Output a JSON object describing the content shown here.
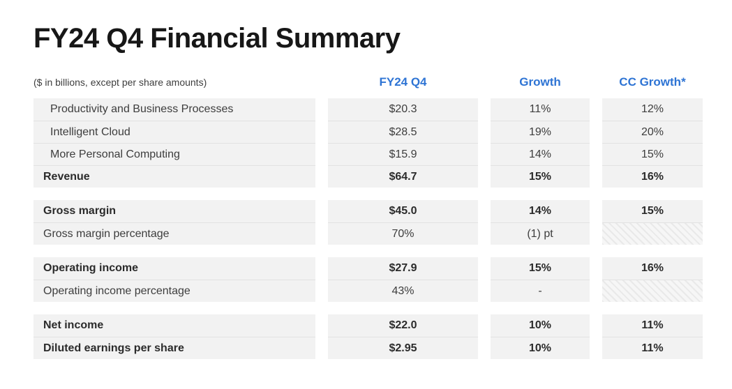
{
  "title": "FY24 Q4 Financial Summary",
  "table": {
    "note": "($ in billions, except per share amounts)",
    "columns": [
      "FY24 Q4",
      "Growth",
      "CC Growth*"
    ],
    "accent_color": "#2e74d4",
    "row_background": "#f2f2f2",
    "sections": [
      {
        "rows": [
          {
            "label": "Productivity and Business Processes",
            "fy24q4": "$20.3",
            "growth": "11%",
            "cc_growth": "12%",
            "indent": true
          },
          {
            "label": "Intelligent Cloud",
            "fy24q4": "$28.5",
            "growth": "19%",
            "cc_growth": "20%",
            "indent": true
          },
          {
            "label": "More Personal Computing",
            "fy24q4": "$15.9",
            "growth": "14%",
            "cc_growth": "15%",
            "indent": true
          },
          {
            "label": "Revenue",
            "fy24q4": "$64.7",
            "growth": "15%",
            "cc_growth": "16%",
            "bold": true,
            "topline": true
          }
        ]
      },
      {
        "rows": [
          {
            "label": "Gross margin",
            "fy24q4": "$45.0",
            "growth": "14%",
            "cc_growth": "15%",
            "bold": true
          },
          {
            "label": "Gross margin percentage",
            "fy24q4": "70%",
            "growth": "(1) pt",
            "cc_growth": null
          }
        ]
      },
      {
        "rows": [
          {
            "label": "Operating income",
            "fy24q4": "$27.9",
            "growth": "15%",
            "cc_growth": "16%",
            "bold": true
          },
          {
            "label": "Operating income percentage",
            "fy24q4": "43%",
            "growth": "-",
            "cc_growth": null
          }
        ]
      },
      {
        "rows": [
          {
            "label": "Net income",
            "fy24q4": "$22.0",
            "growth": "10%",
            "cc_growth": "11%",
            "bold": true
          },
          {
            "label": "Diluted earnings per share",
            "fy24q4": "$2.95",
            "growth": "10%",
            "cc_growth": "11%",
            "bold": true
          }
        ]
      }
    ]
  }
}
